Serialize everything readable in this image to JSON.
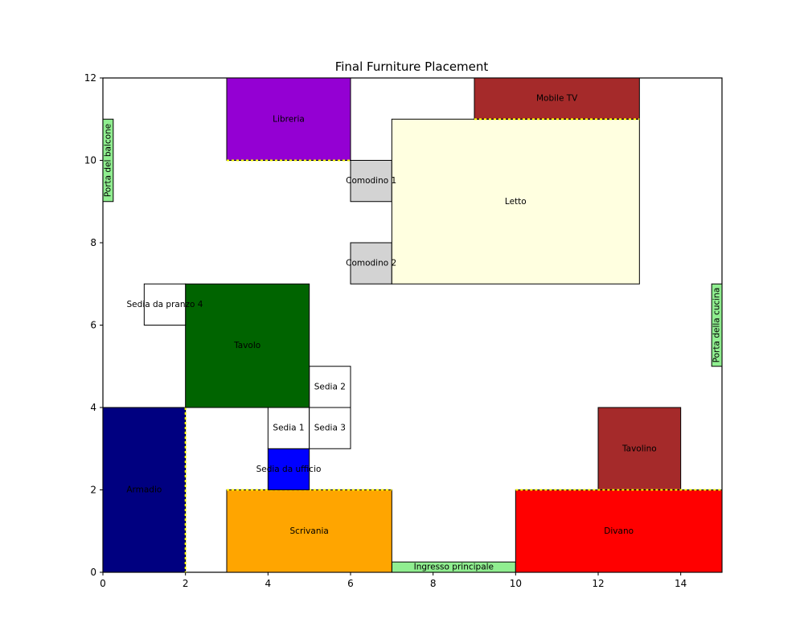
{
  "chart_data": {
    "type": "floor-plan",
    "title": "Final Furniture Placement",
    "xlabel": "",
    "ylabel": "",
    "xlim": [
      0,
      15
    ],
    "ylim": [
      0,
      12
    ],
    "xticks": [
      0,
      2,
      4,
      6,
      8,
      10,
      12,
      14
    ],
    "yticks": [
      0,
      2,
      4,
      6,
      8,
      10,
      12
    ],
    "grid": false,
    "furniture": [
      {
        "label": "Armadio",
        "x": 0,
        "y": 0,
        "w": 2,
        "h": 4,
        "color": "#000080",
        "wall_side": "right"
      },
      {
        "label": "Scrivania",
        "x": 3,
        "y": 0,
        "w": 4,
        "h": 2,
        "color": "#ffa500",
        "wall_side": "top"
      },
      {
        "label": "Sedia da ufficio",
        "x": 4,
        "y": 2,
        "w": 1,
        "h": 1,
        "color": "#0000ff"
      },
      {
        "label": "Sedia 1",
        "x": 4,
        "y": 3,
        "w": 1,
        "h": 1,
        "color": "#ffffff"
      },
      {
        "label": "Sedia 3",
        "x": 5,
        "y": 3,
        "w": 1,
        "h": 1,
        "color": "#ffffff"
      },
      {
        "label": "Sedia 2",
        "x": 5,
        "y": 4,
        "w": 1,
        "h": 1,
        "color": "#ffffff"
      },
      {
        "label": "Tavolo",
        "x": 2,
        "y": 4,
        "w": 3,
        "h": 3,
        "color": "#006400"
      },
      {
        "label": "Sedia da pranzo 4",
        "x": 1,
        "y": 6,
        "w": 1,
        "h": 1,
        "color": "#ffffff"
      },
      {
        "label": "Libreria",
        "x": 3,
        "y": 10,
        "w": 3,
        "h": 2,
        "color": "#9400d3",
        "wall_side": "bottom"
      },
      {
        "label": "Comodino 1",
        "x": 6,
        "y": 9,
        "w": 1,
        "h": 1,
        "color": "#d3d3d3"
      },
      {
        "label": "Comodino 2",
        "x": 6,
        "y": 7,
        "w": 1,
        "h": 1,
        "color": "#d3d3d3"
      },
      {
        "label": "Letto",
        "x": 7,
        "y": 7,
        "w": 6,
        "h": 4,
        "color": "#ffffe0"
      },
      {
        "label": "Mobile TV",
        "x": 9,
        "y": 11,
        "w": 4,
        "h": 1,
        "color": "#a52a2a",
        "wall_side": "bottom"
      },
      {
        "label": "Tavolino",
        "x": 12,
        "y": 2,
        "w": 2,
        "h": 2,
        "color": "#a52a2a"
      },
      {
        "label": "Divano",
        "x": 10,
        "y": 0,
        "w": 5,
        "h": 2,
        "color": "#ff0000",
        "wall_side": "top"
      }
    ],
    "doors": [
      {
        "label": "Porta del balcone",
        "x": 0,
        "y": 9,
        "w": 0.25,
        "h": 2,
        "color": "#90ee90",
        "vertical": true
      },
      {
        "label": "Porta della cucina",
        "x": 14.75,
        "y": 5,
        "w": 0.25,
        "h": 2,
        "color": "#90ee90",
        "vertical": true
      },
      {
        "label": "Ingresso principale",
        "x": 7,
        "y": 0,
        "w": 3,
        "h": 0.25,
        "color": "#90ee90",
        "vertical": false
      }
    ]
  }
}
